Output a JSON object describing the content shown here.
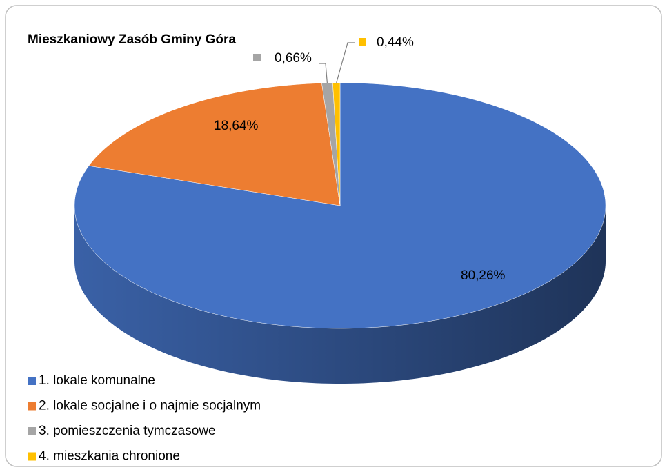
{
  "chart_data": {
    "type": "pie",
    "title": "Mieszkaniowy Zasób Gminy Góra",
    "categories": [
      "1. lokale komunalne",
      "2. lokale socjalne i o najmie socjalnym",
      "3. pomieszczenia tymczasowe",
      "4. mieszkania chronione"
    ],
    "values": [
      80.26,
      18.64,
      0.66,
      0.44
    ],
    "value_labels": [
      "80,26%",
      "18,64%",
      "0,66%",
      "0,44%"
    ],
    "colors": [
      "#4472c4",
      "#ed7d31",
      "#a5a5a5",
      "#ffc000"
    ],
    "legend": "bottom-left"
  }
}
